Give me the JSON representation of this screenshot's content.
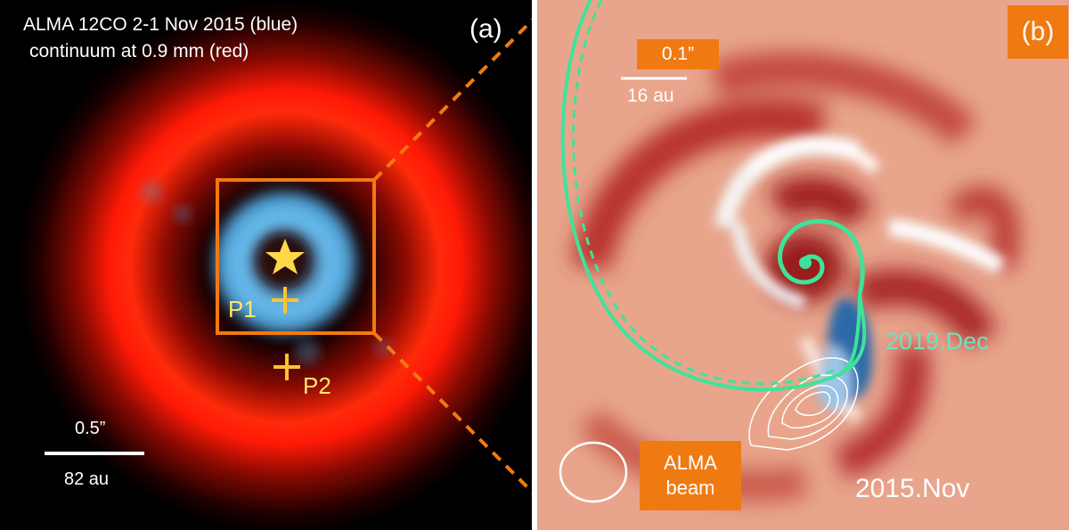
{
  "panel_a": {
    "label": "(a)",
    "title_line1": "ALMA 12CO 2-1 Nov 2015 (blue)",
    "title_line2": "continuum at 0.9 mm (red)",
    "scale_top": "0.5”",
    "scale_bottom": "82 au",
    "p1_label": "P1",
    "p2_label": "P2",
    "star_icon": "star-icon",
    "colors": {
      "continuum": "#ff1a08",
      "co": "#5fb8f0",
      "box": "#f07a12",
      "marker": "#ffcc33"
    }
  },
  "panel_b": {
    "label": "(b)",
    "scale_top": "0.1”",
    "scale_bottom": "16 au",
    "epoch_model": "2019.Dec",
    "epoch_data": "2015.Nov",
    "beam_line1": "ALMA",
    "beam_line2": "beam",
    "colors": {
      "background": "#e8a58c",
      "dark_red": "#9e1d1d",
      "white": "#ffffff",
      "blue": "#1e5a9c",
      "spiral": "#3ee39a",
      "label_box": "#f07a12"
    }
  }
}
